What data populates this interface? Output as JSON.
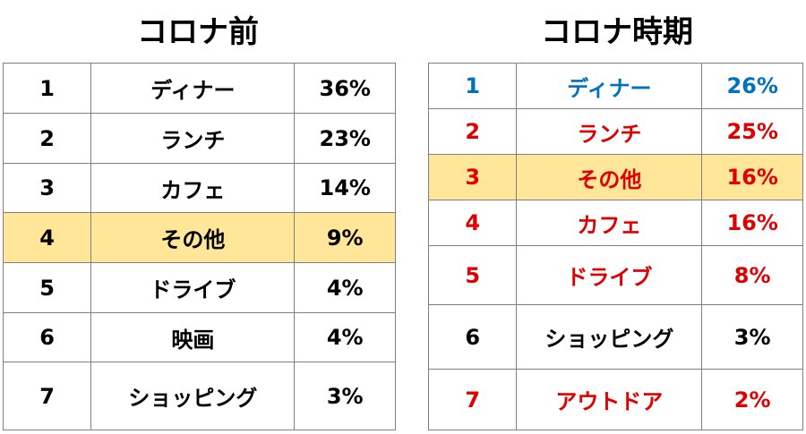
{
  "left": {
    "title": "コロナ前",
    "rows": [
      {
        "rank": "1",
        "activity": "ディナー",
        "percent": "36%"
      },
      {
        "rank": "2",
        "activity": "ランチ",
        "percent": "23%"
      },
      {
        "rank": "3",
        "activity": "カフェ",
        "percent": "14%"
      },
      {
        "rank": "4",
        "activity": "その他",
        "percent": "9%"
      },
      {
        "rank": "5",
        "activity": "ドライブ",
        "percent": "4%"
      },
      {
        "rank": "6",
        "activity": "映画",
        "percent": "4%"
      },
      {
        "rank": "7",
        "activity": "ショッピング",
        "percent": "3%"
      }
    ]
  },
  "right": {
    "title": "コロナ時期",
    "rows": [
      {
        "rank": "1",
        "activity": "ディナー",
        "percent": "26%"
      },
      {
        "rank": "2",
        "activity": "ランチ",
        "percent": "25%"
      },
      {
        "rank": "3",
        "activity": "その他",
        "percent": "16%"
      },
      {
        "rank": "4",
        "activity": "カフェ",
        "percent": "16%"
      },
      {
        "rank": "5",
        "activity": "ドライブ",
        "percent": "8%"
      },
      {
        "rank": "6",
        "activity": "ショッピング",
        "percent": "3%"
      },
      {
        "rank": "7",
        "activity": "アウトドア",
        "percent": "2%"
      }
    ]
  },
  "colors": {
    "highlight": "#ffe699",
    "blue": "#0070c0",
    "red": "#e00000",
    "black": "#000000"
  }
}
